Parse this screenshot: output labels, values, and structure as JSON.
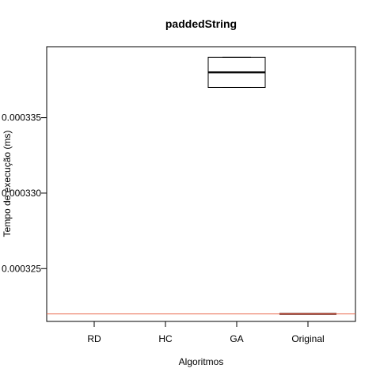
{
  "chart_data": {
    "type": "boxplot",
    "title": "paddedString",
    "xlabel": "Algoritmos",
    "ylabel": "Tempo de execução (ms)",
    "categories": [
      "RD",
      "HC",
      "GA",
      "Original"
    ],
    "boxes": [
      null,
      null,
      {
        "min": 0.000337,
        "q1": 0.000337,
        "median": 0.000338,
        "q3": 0.000339,
        "max": 0.000339
      },
      {
        "min": 0.000322,
        "q1": 0.000322,
        "median": 0.000322,
        "q3": 0.000322,
        "max": 0.000322
      }
    ],
    "yticks": [
      0.000325,
      0.00033,
      0.000335
    ],
    "ytick_labels": [
      "0.000325",
      "0.000330",
      "0.000335"
    ],
    "ylim": [
      0.0003215,
      0.0003397
    ],
    "reference_line": {
      "value": 0.000322,
      "color": "#e8664a"
    },
    "colors": {
      "box": "#000000",
      "original_median": "#5a1f1a"
    },
    "grid": false,
    "legend": "none"
  }
}
